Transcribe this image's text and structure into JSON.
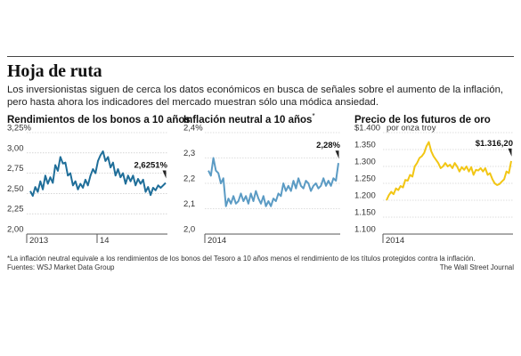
{
  "header": {
    "title": "Hoja de ruta",
    "subtitle": "Los inversionistas siguen de cerca los datos económicos en busca de señales sobre el aumento de la inflación, pero hasta ahora los indicadores del mercado muestran sólo una módica ansiedad."
  },
  "footer": {
    "footnote": "*La inflación neutral equivale a los rendimientos de los bonos del Tesoro a 10 años menos el rendimiento de los títulos protegidos contra la inflación.",
    "sources": "Fuentes: WSJ Market Data Group",
    "credit": "The Wall Street Journal"
  },
  "chart_data": [
    {
      "type": "line",
      "title": "Rendimientos de los bonos a 10 años",
      "title_mark": "",
      "color": "#1f6e99",
      "ylim": [
        2.0,
        3.25
      ],
      "yticks": [
        3.25,
        3.0,
        2.75,
        2.5,
        2.25,
        2.0
      ],
      "ytick_labels": [
        "3,25%",
        "3,00",
        "2,75",
        "2,50",
        "2,25",
        "2,00"
      ],
      "xticks": [
        {
          "label": "2013",
          "x": 0.0
        },
        {
          "label": "14",
          "x": 0.5
        }
      ],
      "last_label": "2,6251%",
      "values": [
        2.53,
        2.47,
        2.58,
        2.52,
        2.65,
        2.55,
        2.72,
        2.62,
        2.7,
        2.63,
        2.85,
        2.78,
        2.95,
        2.87,
        2.88,
        2.72,
        2.75,
        2.6,
        2.65,
        2.55,
        2.62,
        2.57,
        2.67,
        2.6,
        2.72,
        2.8,
        2.75,
        2.9,
        2.97,
        3.02,
        2.9,
        2.95,
        2.82,
        2.88,
        2.72,
        2.8,
        2.7,
        2.75,
        2.62,
        2.72,
        2.65,
        2.72,
        2.6,
        2.68,
        2.62,
        2.67,
        2.52,
        2.58,
        2.48,
        2.57,
        2.54,
        2.6,
        2.57,
        2.6,
        2.63
      ]
    },
    {
      "type": "line",
      "title": "Inflación neutral a 10 años",
      "title_mark": "*",
      "color": "#5b9bc4",
      "ylim": [
        2.0,
        2.4
      ],
      "yticks": [
        2.4,
        2.3,
        2.2,
        2.1,
        2.0
      ],
      "ytick_labels": [
        "2,4%",
        "2,3",
        "2,2",
        "2,1",
        "2,0"
      ],
      "xticks": [
        {
          "label": "2014",
          "x": 0.0
        }
      ],
      "last_label": "2,28%",
      "values": [
        2.25,
        2.23,
        2.3,
        2.25,
        2.24,
        2.2,
        2.22,
        2.11,
        2.14,
        2.12,
        2.15,
        2.12,
        2.13,
        2.16,
        2.13,
        2.15,
        2.12,
        2.16,
        2.13,
        2.17,
        2.14,
        2.12,
        2.15,
        2.11,
        2.13,
        2.11,
        2.14,
        2.13,
        2.16,
        2.15,
        2.2,
        2.17,
        2.19,
        2.17,
        2.21,
        2.18,
        2.22,
        2.19,
        2.18,
        2.21,
        2.2,
        2.17,
        2.19,
        2.2,
        2.18,
        2.19,
        2.22,
        2.19,
        2.21,
        2.19,
        2.22,
        2.21,
        2.28
      ]
    },
    {
      "type": "line",
      "title": "Precio de los futuros de oro",
      "title_mark": "",
      "unit_label": "por onza troy",
      "color": "#f2c614",
      "ylim": [
        1100,
        1400
      ],
      "yticks": [
        1400,
        1350,
        1300,
        1250,
        1200,
        1150,
        1100
      ],
      "ytick_labels": [
        "$1.400",
        "1.350",
        "1.300",
        "1.250",
        "1.200",
        "1.150",
        "1.100"
      ],
      "xticks": [
        {
          "label": "2014",
          "x": 0.0
        }
      ],
      "last_label": "$1.316,20",
      "values": [
        1200,
        1215,
        1225,
        1218,
        1235,
        1230,
        1242,
        1238,
        1260,
        1258,
        1275,
        1270,
        1300,
        1310,
        1325,
        1330,
        1340,
        1360,
        1372,
        1345,
        1330,
        1320,
        1310,
        1295,
        1300,
        1310,
        1300,
        1305,
        1295,
        1310,
        1300,
        1285,
        1298,
        1290,
        1300,
        1285,
        1298,
        1275,
        1290,
        1288,
        1295,
        1285,
        1295,
        1275,
        1280,
        1262,
        1250,
        1245,
        1248,
        1255,
        1262,
        1285,
        1280,
        1316
      ]
    }
  ]
}
